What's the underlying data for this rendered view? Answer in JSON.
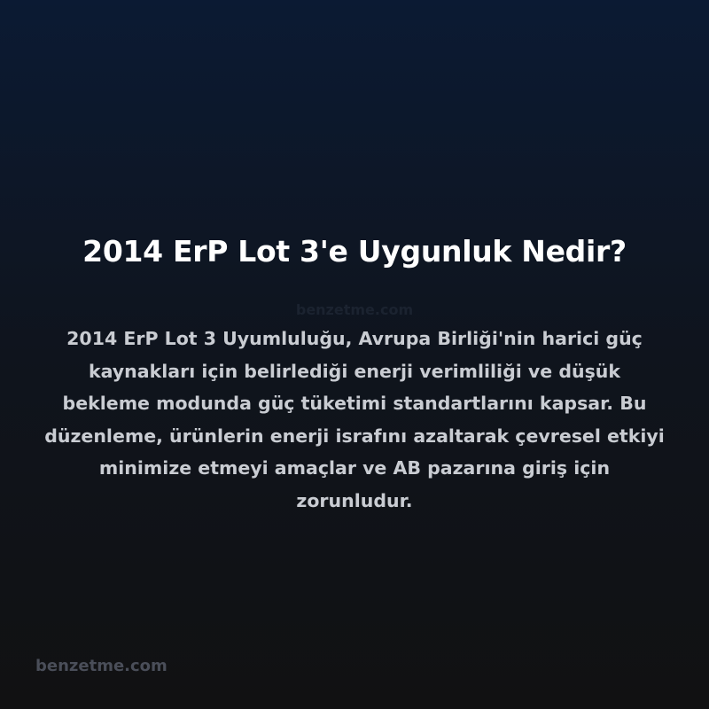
{
  "title": "2014 ErP Lot 3'e Uygunluk Nedir?",
  "watermark": "benzetme.com",
  "body": "2014 ErP Lot 3 Uyumluluğu, Avrupa Birliği'nin harici güç kaynakları için belirlediği enerji verimliliği ve düşük bekleme modunda güç tüketimi standartlarını kapsar. Bu düzenleme, ürünlerin enerji israfını azaltarak çevresel etkiyi minimize etmeyi amaçlar ve AB pazarına giriş için zorunludur.",
  "footer": "benzetme.com"
}
